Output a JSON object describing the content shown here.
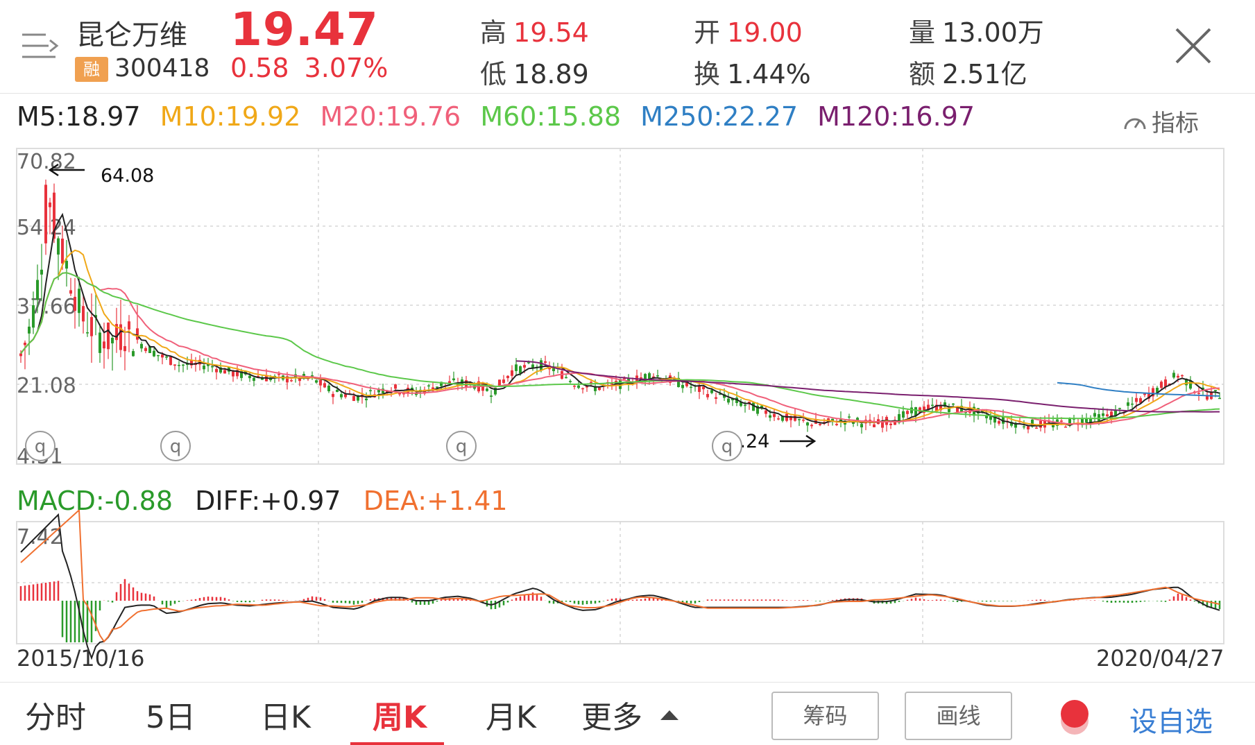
{
  "header": {
    "name": "昆仑万维",
    "badge": "融",
    "code": "300418",
    "price": "19.47",
    "change": "0.58",
    "change_pct": "3.07%",
    "high_label": "高",
    "high": "19.54",
    "low_label": "低",
    "low": "18.89",
    "open_label": "开",
    "open": "19.00",
    "turnover_label": "换",
    "turnover": "1.44%",
    "volume_label": "量",
    "volume": "13.00万",
    "amount_label": "额",
    "amount": "2.51亿"
  },
  "ma_legend": [
    {
      "text": "M5:18.97",
      "color": "#222222"
    },
    {
      "text": "M10:19.92",
      "color": "#f0a818"
    },
    {
      "text": "M20:19.76",
      "color": "#f0607a"
    },
    {
      "text": "M60:15.88",
      "color": "#5cc84a"
    },
    {
      "text": "M250:22.27",
      "color": "#2f7fc4"
    },
    {
      "text": "M120:16.97",
      "color": "#7a1f6e"
    }
  ],
  "indicator_label": "指标",
  "macd_legend": {
    "macd": "MACD:-0.88",
    "macd_color": "#2a9a2a",
    "diff": "DIFF:+0.97",
    "diff_color": "#222222",
    "dea": "DEA:+1.41",
    "dea_color": "#f07030"
  },
  "chart_data": {
    "type": "candlestick",
    "period": "weekly",
    "x_start": "2015/10/16",
    "x_end": "2020/04/27",
    "y_ticks": [
      "70.82",
      "54.24",
      "37.66",
      "21.08",
      "4.51"
    ],
    "ylim": [
      4.51,
      70.82
    ],
    "annotations": [
      {
        "label": "64.08",
        "type": "max"
      },
      {
        "label": "11.24",
        "type": "min"
      }
    ],
    "markers": [
      "q",
      "q",
      "q",
      "q"
    ],
    "grid": true,
    "macd": {
      "y_tick": "7.42"
    }
  },
  "date_left": "2015/10/16",
  "date_right": "2020/04/27",
  "tabs": [
    {
      "label": "分时",
      "active": false
    },
    {
      "label": "5日",
      "active": false
    },
    {
      "label": "日K",
      "active": false
    },
    {
      "label": "周K",
      "active": true
    },
    {
      "label": "月K",
      "active": false
    },
    {
      "label": "更多",
      "active": false
    }
  ],
  "btn_chips": "筹码",
  "btn_draw": "画线",
  "btn_fav": "设自选",
  "colors": {
    "up": "#e8323c",
    "down": "#2a9a2a",
    "blue": "#3a7fd4"
  }
}
